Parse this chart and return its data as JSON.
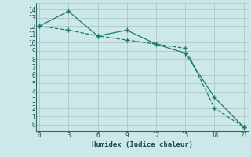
{
  "xlabel": "Humidex (Indice chaleur)",
  "background_color": "#cce8e8",
  "grid_color": "#aac8c8",
  "line_color": "#1a7a6e",
  "x_ticks": [
    0,
    3,
    6,
    9,
    12,
    15,
    18,
    21
  ],
  "y_ticks": [
    0,
    1,
    2,
    3,
    4,
    5,
    6,
    7,
    8,
    9,
    10,
    11,
    12,
    13,
    14
  ],
  "xlim": [
    -0.3,
    21.5
  ],
  "ylim": [
    -0.8,
    14.8
  ],
  "line1_x": [
    0,
    3,
    6,
    9,
    12,
    15,
    18,
    21
  ],
  "line1_y": [
    12.0,
    11.5,
    10.8,
    10.3,
    9.8,
    9.3,
    2.0,
    -0.3
  ],
  "line2_x": [
    0,
    3,
    6,
    9,
    12,
    15,
    18,
    21
  ],
  "line2_y": [
    12.0,
    13.8,
    10.8,
    11.5,
    9.8,
    8.7,
    3.3,
    -0.3
  ]
}
